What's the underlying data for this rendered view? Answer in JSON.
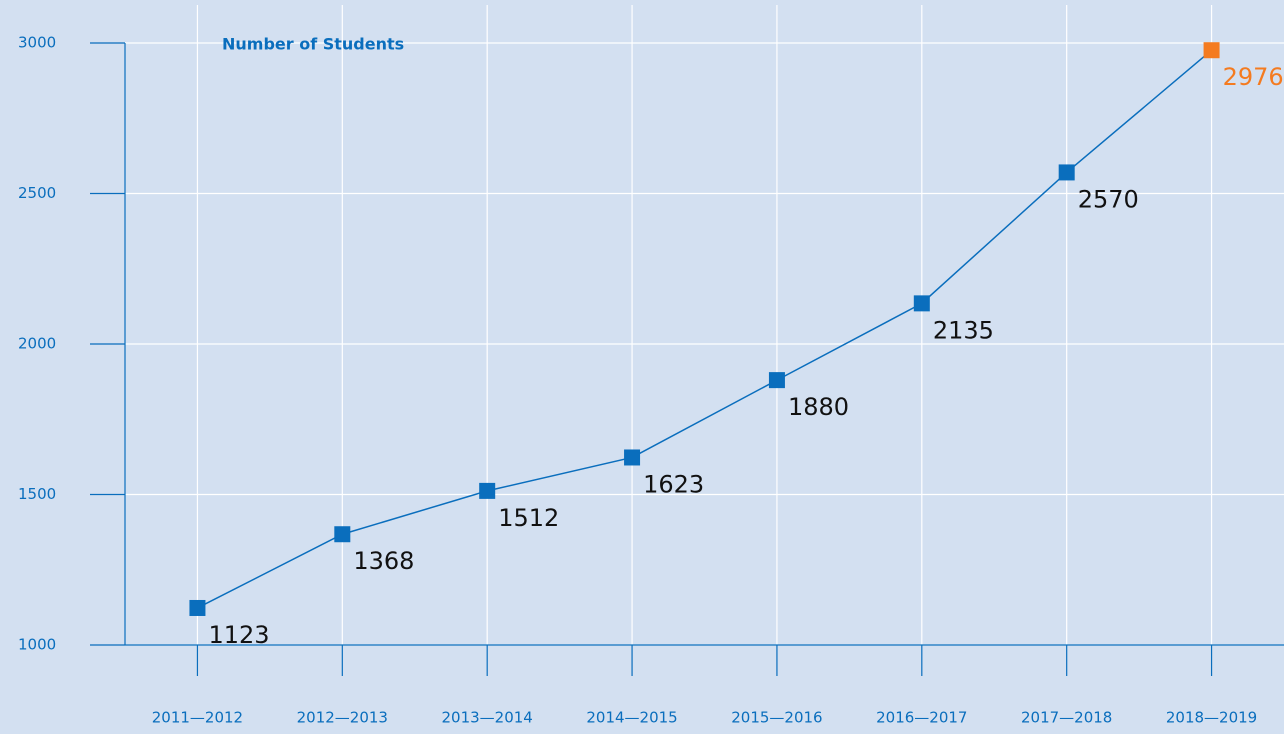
{
  "chart_data": {
    "type": "line",
    "title": "Number of Students",
    "categories": [
      "2011—2012",
      "2012—2013",
      "2013—2014",
      "2014—2015",
      "2015—2016",
      "2016—2017",
      "2017—2018",
      "2018—2019"
    ],
    "values": [
      1123,
      1368,
      1512,
      1623,
      1880,
      2135,
      2570,
      2976
    ],
    "color": "#0a6ebd",
    "point_colors": [
      "#0a6ebd",
      "#0a6ebd",
      "#0a6ebd",
      "#0a6ebd",
      "#0a6ebd",
      "#0a6ebd",
      "#0a6ebd",
      "#f47b20"
    ],
    "ylim": [
      1000,
      3000
    ],
    "yticks": [
      1000,
      1500,
      2000,
      2500,
      3000
    ],
    "grid": true
  }
}
